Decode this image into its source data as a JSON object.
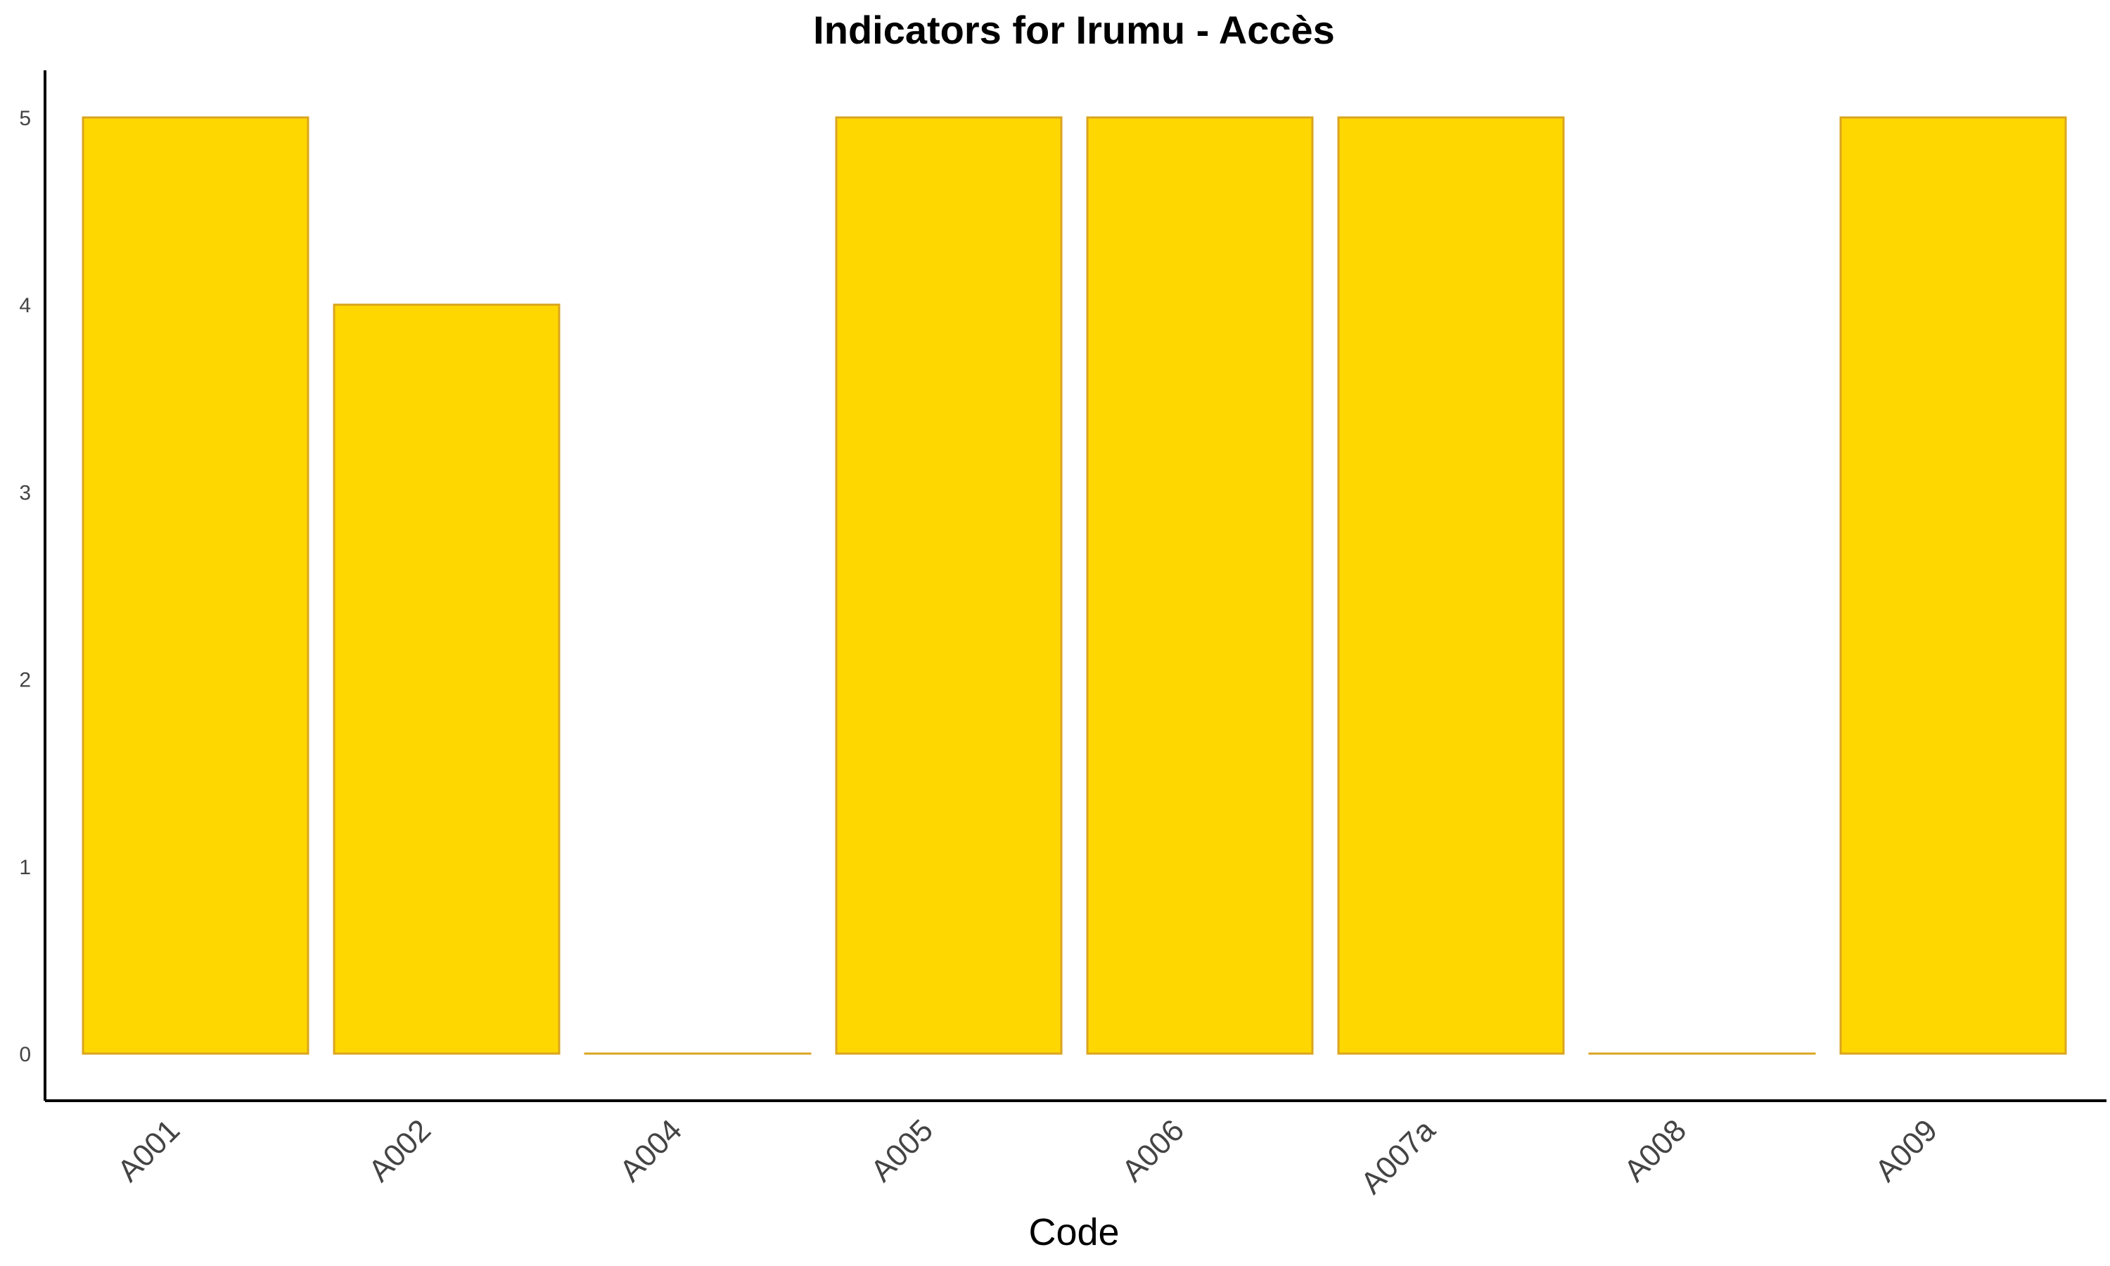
{
  "chart_data": {
    "type": "bar",
    "title": "Indicators for Irumu - Accès",
    "xlabel": "Code",
    "ylabel": "",
    "categories": [
      "A001",
      "A002",
      "A004",
      "A005",
      "A006",
      "A007a",
      "A008",
      "A009"
    ],
    "values": [
      5,
      4,
      0,
      5,
      5,
      5,
      0,
      5
    ],
    "ylim": [
      0,
      5
    ],
    "yticks": [
      "0",
      "1",
      "2",
      "3",
      "4",
      "5"
    ],
    "grid": false,
    "legend": "none",
    "colors": {
      "bar_fill": "#FFD700",
      "bar_stroke": "#DAA520",
      "axis": "#000000"
    }
  }
}
